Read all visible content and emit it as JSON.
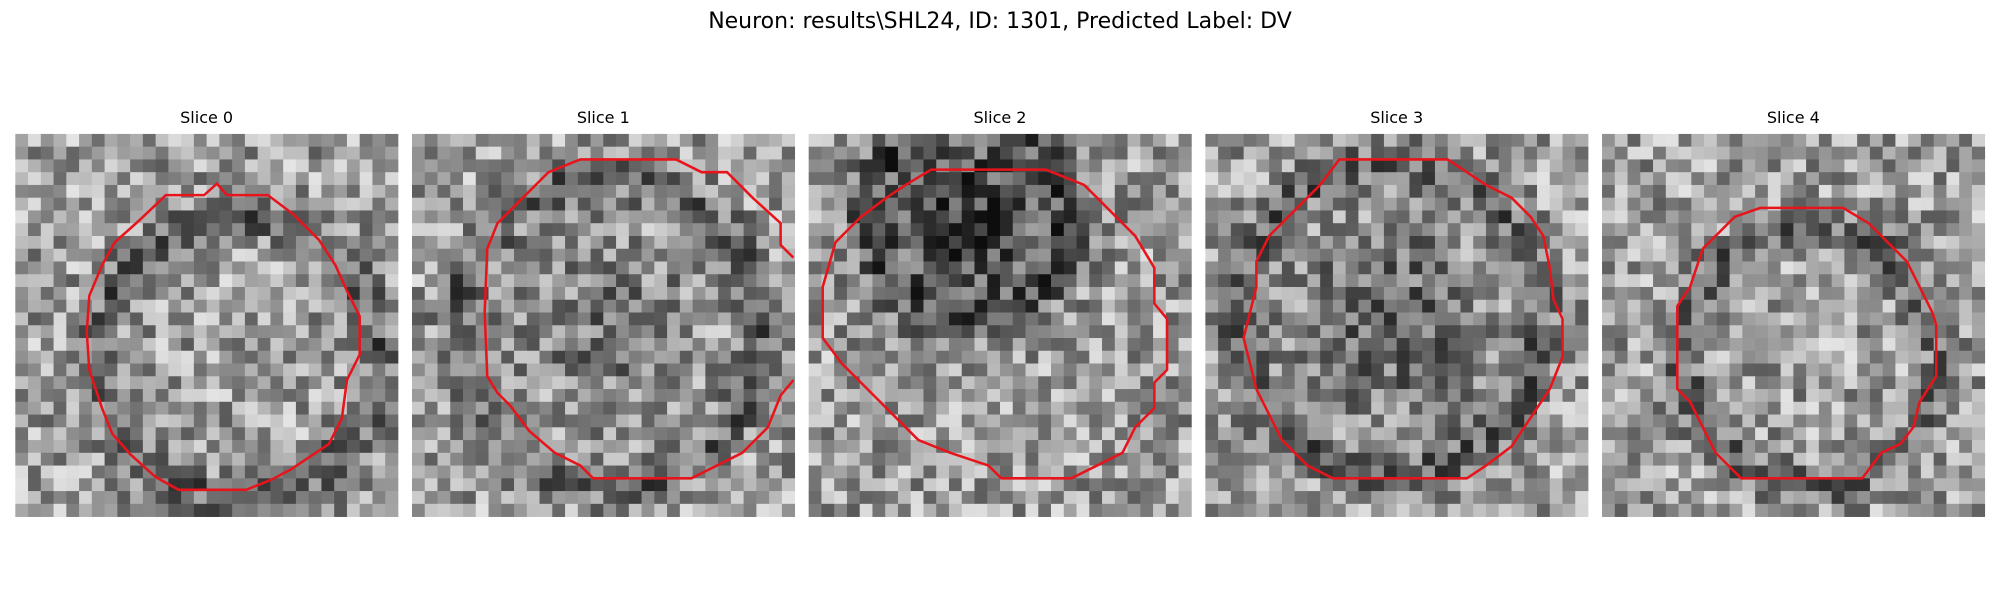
{
  "figure": {
    "title": "Neuron: results\\SHL24, ID: 1301, Predicted Label: DV",
    "panels": [
      {
        "title": "Slice 0"
      },
      {
        "title": "Slice 1"
      },
      {
        "title": "Slice 2"
      },
      {
        "title": "Slice 3"
      },
      {
        "title": "Slice 4"
      }
    ]
  }
}
